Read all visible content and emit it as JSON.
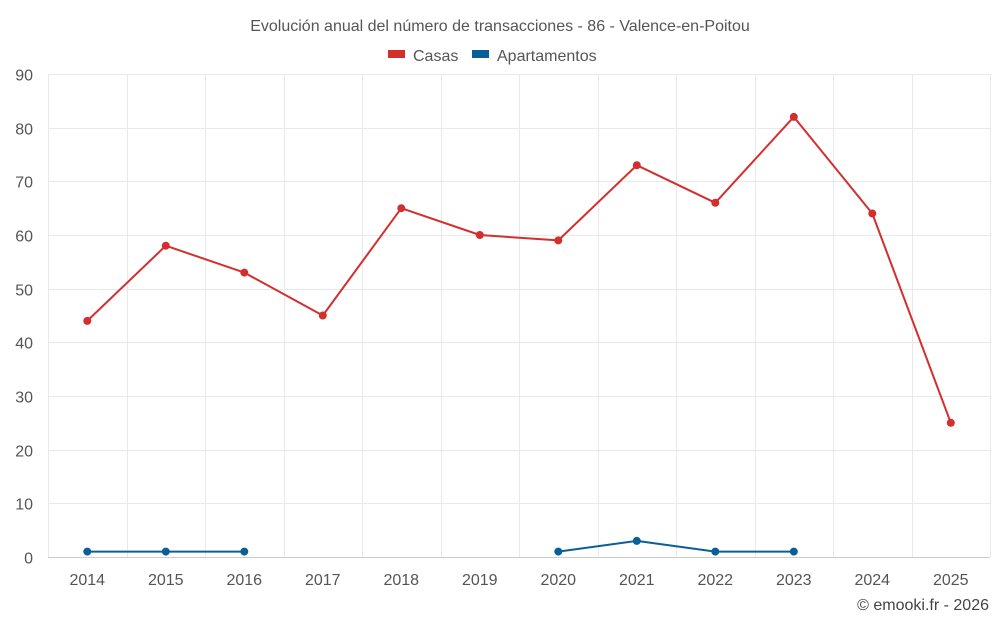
{
  "chart_data": {
    "type": "line",
    "title": "Evolución anual del número de transacciones - 86 - Valence-en-Poitou",
    "categories": [
      "2014",
      "2015",
      "2016",
      "2017",
      "2018",
      "2019",
      "2020",
      "2021",
      "2022",
      "2023",
      "2024",
      "2025"
    ],
    "series": [
      {
        "name": "Casas",
        "color": "#d32f2f",
        "values": [
          44,
          58,
          53,
          45,
          65,
          60,
          59,
          73,
          66,
          82,
          64,
          25
        ]
      },
      {
        "name": "Apartamentos",
        "color": "#0a5f96",
        "values": [
          1,
          1,
          1,
          null,
          null,
          null,
          1,
          3,
          1,
          1,
          null,
          null
        ]
      }
    ],
    "ylim": [
      0,
      90
    ],
    "yticks": [
      0,
      10,
      20,
      30,
      40,
      50,
      60,
      70,
      80,
      90
    ],
    "xlabel": "",
    "ylabel": "",
    "grid": true,
    "legend": "top-center"
  },
  "credit": "© emooki.fr - 2026"
}
